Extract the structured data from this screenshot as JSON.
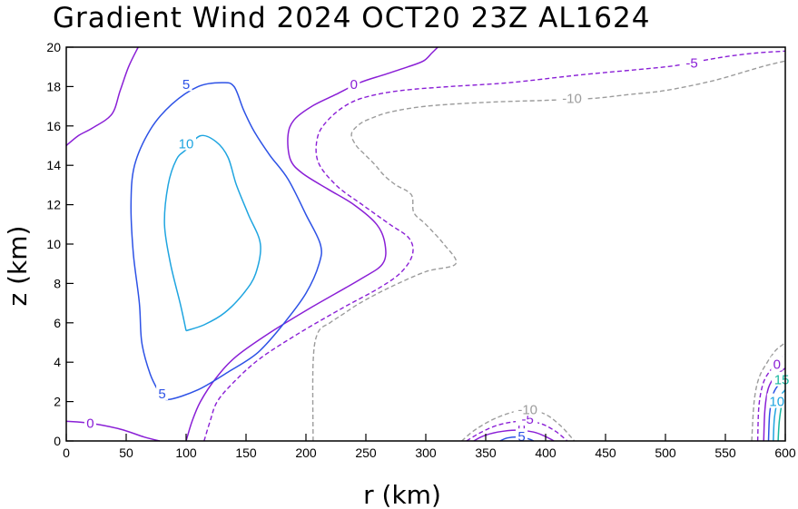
{
  "chart_data": {
    "type": "contour",
    "title": "Gradient Wind 2024 OCT20 23Z  AL1624",
    "xlabel": "r (km)",
    "ylabel": "z (km)",
    "xlim": [
      0,
      600
    ],
    "ylim": [
      0,
      20
    ],
    "xticks": [
      0,
      50,
      100,
      150,
      200,
      250,
      300,
      350,
      400,
      450,
      500,
      550,
      600
    ],
    "yticks": [
      0,
      2,
      4,
      6,
      8,
      10,
      12,
      14,
      16,
      18,
      20
    ],
    "contours": [
      {
        "level": 0,
        "label": "0",
        "color": "#8a1fd6",
        "dashed": false,
        "points": [
          [
            0,
            1.0
          ],
          [
            20,
            0.9
          ],
          [
            45,
            0.6
          ],
          [
            65,
            0.2
          ],
          [
            78,
            0.0
          ]
        ],
        "label_at": [
          [
            20,
            0.9
          ]
        ]
      },
      {
        "level": 0,
        "label": "0",
        "color": "#8a1fd6",
        "dashed": false,
        "points": [
          [
            0,
            15.0
          ],
          [
            10,
            15.5
          ],
          [
            22,
            15.9
          ],
          [
            38,
            16.6
          ],
          [
            45,
            17.8
          ],
          [
            52,
            19.0
          ],
          [
            60,
            20.0
          ]
        ]
      },
      {
        "level": 0,
        "label": "0",
        "color": "#8a1fd6",
        "dashed": false,
        "points": [
          [
            100,
            0.0
          ],
          [
            105,
            1.0
          ],
          [
            112,
            2.0
          ],
          [
            125,
            3.2
          ],
          [
            142,
            4.3
          ],
          [
            170,
            5.5
          ],
          [
            205,
            6.8
          ],
          [
            245,
            8.2
          ],
          [
            264,
            9.0
          ],
          [
            266,
            10.0
          ],
          [
            259,
            11.0
          ],
          [
            240,
            12.0
          ],
          [
            218,
            12.8
          ],
          [
            197,
            13.6
          ],
          [
            187,
            14.3
          ],
          [
            185,
            15.5
          ],
          [
            190,
            16.3
          ],
          [
            205,
            17.0
          ],
          [
            225,
            17.6
          ],
          [
            245,
            18.2
          ],
          [
            265,
            18.6
          ],
          [
            285,
            19.0
          ],
          [
            298,
            19.3
          ],
          [
            305,
            19.7
          ],
          [
            310,
            20.0
          ]
        ],
        "label_at": [
          [
            240,
            18.1
          ]
        ]
      },
      {
        "level": 5,
        "label": "5",
        "color": "#2d52e6",
        "dashed": false,
        "points": [
          [
            78,
            2.4
          ],
          [
            70,
            3.4
          ],
          [
            63,
            5.0
          ],
          [
            61,
            7.0
          ],
          [
            56,
            9.5
          ],
          [
            54,
            12.0
          ],
          [
            57,
            14.0
          ],
          [
            70,
            15.8
          ],
          [
            88,
            17.1
          ],
          [
            110,
            18.0
          ],
          [
            130,
            18.2
          ],
          [
            140,
            18.0
          ],
          [
            148,
            16.8
          ],
          [
            157,
            15.7
          ],
          [
            170,
            14.5
          ],
          [
            185,
            13.3
          ],
          [
            200,
            11.5
          ],
          [
            212,
            10.0
          ],
          [
            211,
            9.0
          ],
          [
            200,
            7.5
          ],
          [
            182,
            6.0
          ],
          [
            160,
            4.5
          ],
          [
            135,
            3.5
          ],
          [
            110,
            2.6
          ],
          [
            85,
            2.1
          ],
          [
            78,
            2.4
          ]
        ],
        "label_at": [
          [
            80,
            2.4
          ],
          [
            100,
            18.1
          ]
        ]
      },
      {
        "level": 10,
        "label": "10",
        "color": "#1fa5e0",
        "dashed": false,
        "points": [
          [
            100,
            5.6
          ],
          [
            95,
            7.0
          ],
          [
            87,
            9.0
          ],
          [
            82,
            11.0
          ],
          [
            85,
            13.0
          ],
          [
            92,
            14.3
          ],
          [
            100,
            14.8
          ],
          [
            112,
            15.5
          ],
          [
            125,
            15.2
          ],
          [
            135,
            14.4
          ],
          [
            142,
            13.0
          ],
          [
            152,
            11.5
          ],
          [
            162,
            10.0
          ],
          [
            158,
            8.5
          ],
          [
            148,
            7.5
          ],
          [
            132,
            6.5
          ],
          [
            115,
            5.9
          ],
          [
            100,
            5.6
          ]
        ],
        "label_at": [
          [
            100,
            15.1
          ]
        ]
      },
      {
        "level": -5,
        "label": "-5",
        "color": "#8a1fd6",
        "dashed": true,
        "points": [
          [
            115,
            0.0
          ],
          [
            120,
            1.0
          ],
          [
            126,
            2.0
          ],
          [
            140,
            3.0
          ],
          [
            162,
            4.2
          ],
          [
            195,
            5.5
          ],
          [
            232,
            6.8
          ],
          [
            262,
            7.8
          ],
          [
            280,
            8.6
          ],
          [
            289,
            9.5
          ],
          [
            286,
            10.3
          ],
          [
            270,
            11.0
          ],
          [
            247,
            12.0
          ],
          [
            225,
            13.0
          ],
          [
            210,
            14.2
          ],
          [
            210,
            15.5
          ],
          [
            220,
            16.4
          ],
          [
            235,
            17.1
          ],
          [
            252,
            17.5
          ],
          [
            280,
            17.8
          ],
          [
            320,
            18.0
          ],
          [
            370,
            18.2
          ],
          [
            430,
            18.6
          ],
          [
            500,
            19.0
          ],
          [
            520,
            19.2
          ],
          [
            548,
            19.5
          ],
          [
            575,
            19.7
          ],
          [
            600,
            19.8
          ]
        ],
        "label_at": [
          [
            522,
            19.2
          ]
        ]
      },
      {
        "level": -10,
        "label": "-10",
        "color": "#9c9c9c",
        "dashed": true,
        "points": [
          [
            206,
            0.0
          ],
          [
            206,
            4.0
          ],
          [
            210,
            5.5
          ],
          [
            220,
            6.0
          ],
          [
            230,
            6.4
          ],
          [
            245,
            7.0
          ],
          [
            270,
            7.8
          ],
          [
            300,
            8.6
          ],
          [
            325,
            9.0
          ],
          [
            315,
            10.0
          ],
          [
            300,
            11.0
          ],
          [
            290,
            11.6
          ],
          [
            288,
            12.5
          ],
          [
            275,
            13.0
          ],
          [
            265,
            13.5
          ],
          [
            258,
            14.0
          ],
          [
            250,
            14.5
          ],
          [
            242,
            15.0
          ],
          [
            238,
            15.6
          ],
          [
            245,
            16.1
          ],
          [
            255,
            16.4
          ],
          [
            270,
            16.7
          ],
          [
            300,
            17.0
          ],
          [
            350,
            17.2
          ],
          [
            400,
            17.3
          ],
          [
            440,
            17.4
          ],
          [
            470,
            17.6
          ],
          [
            500,
            17.8
          ],
          [
            540,
            18.3
          ],
          [
            580,
            19.0
          ],
          [
            600,
            19.3
          ]
        ],
        "label_at": [
          [
            422,
            17.4
          ]
        ]
      },
      {
        "level": 0,
        "label": "0",
        "color": "#8a1fd6",
        "dashed": false,
        "points": [
          [
            340,
            0.0
          ],
          [
            348,
            0.25
          ],
          [
            360,
            0.45
          ],
          [
            375,
            0.55
          ],
          [
            390,
            0.45
          ],
          [
            400,
            0.22
          ],
          [
            407,
            0.0
          ]
        ],
        "label_at": [
          [
            380,
            0.7
          ]
        ]
      },
      {
        "level": -5,
        "label": "-5",
        "color": "#8a1fd6",
        "dashed": true,
        "points": [
          [
            334,
            0.0
          ],
          [
            345,
            0.4
          ],
          [
            360,
            0.8
          ],
          [
            378,
            1.0
          ],
          [
            395,
            0.9
          ],
          [
            408,
            0.5
          ],
          [
            418,
            0.0
          ]
        ],
        "label_at": [
          [
            385,
            1.1
          ]
        ]
      },
      {
        "level": -10,
        "label": "-10",
        "color": "#9c9c9c",
        "dashed": true,
        "points": [
          [
            330,
            0.0
          ],
          [
            342,
            0.6
          ],
          [
            360,
            1.2
          ],
          [
            380,
            1.55
          ],
          [
            398,
            1.4
          ],
          [
            412,
            0.8
          ],
          [
            424,
            0.0
          ]
        ],
        "label_at": [
          [
            385,
            1.6
          ]
        ]
      },
      {
        "level": 5,
        "label": "5",
        "color": "#2d52e6",
        "dashed": false,
        "points": [
          [
            362,
            0.0
          ],
          [
            368,
            0.15
          ],
          [
            378,
            0.2
          ],
          [
            386,
            0.1
          ],
          [
            390,
            0.0
          ]
        ],
        "label_at": [
          [
            380,
            0.22
          ]
        ]
      },
      {
        "level": -10,
        "label": "-10",
        "color": "#9c9c9c",
        "dashed": true,
        "points": [
          [
            572,
            0.0
          ],
          [
            574,
            2.0
          ],
          [
            578,
            3.2
          ],
          [
            585,
            4.0
          ],
          [
            592,
            4.6
          ],
          [
            598,
            4.9
          ],
          [
            600,
            5.0
          ]
        ]
      },
      {
        "level": -5,
        "label": "-5",
        "color": "#8a1fd6",
        "dashed": true,
        "points": [
          [
            577,
            0.0
          ],
          [
            578,
            1.8
          ],
          [
            582,
            3.0
          ],
          [
            589,
            3.7
          ],
          [
            596,
            4.2
          ],
          [
            600,
            4.4
          ]
        ]
      },
      {
        "level": 0,
        "label": "0",
        "color": "#8a1fd6",
        "dashed": false,
        "points": [
          [
            582,
            0.0
          ],
          [
            583,
            1.6
          ],
          [
            586,
            2.7
          ],
          [
            592,
            3.3
          ],
          [
            600,
            3.7
          ]
        ],
        "label_at": [
          [
            593,
            3.9
          ]
        ]
      },
      {
        "level": 5,
        "label": "5",
        "color": "#2d52e6",
        "dashed": false,
        "points": [
          [
            586,
            0.0
          ],
          [
            587,
            1.4
          ],
          [
            590,
            2.4
          ],
          [
            595,
            2.9
          ],
          [
            600,
            3.1
          ]
        ]
      },
      {
        "level": 10,
        "label": "10",
        "color": "#1fa5e0",
        "dashed": false,
        "points": [
          [
            590,
            0.0
          ],
          [
            591,
            1.2
          ],
          [
            594,
            2.1
          ],
          [
            600,
            2.6
          ]
        ],
        "label_at": [
          [
            593,
            2.0
          ]
        ]
      },
      {
        "level": 15,
        "label": "15",
        "color": "#18b8a0",
        "dashed": false,
        "points": [
          [
            594,
            0.0
          ],
          [
            595,
            1.0
          ],
          [
            597,
            1.8
          ],
          [
            600,
            2.2
          ]
        ],
        "label_at": [
          [
            597,
            3.1
          ]
        ]
      }
    ]
  }
}
